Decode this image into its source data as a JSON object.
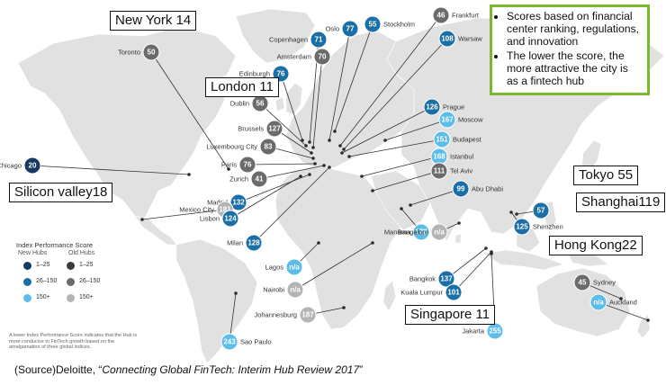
{
  "notes": [
    "Scores based on financial center ranking, regulations, and innovation",
    "The lower the score, the more attractive the city is as a fintech hub"
  ],
  "callouts": {
    "new_york": "New York 14",
    "london": "London 11",
    "silicon_valley": "Silicon valley18",
    "tokyo": "Tokyo 55",
    "shanghai": "Shanghai119",
    "hong_kong": "Hong Kong22",
    "singapore": "Singapore 11"
  },
  "colors": {
    "new_1_25": "#173a63",
    "new_26_150": "#1a6fa6",
    "new_150_plus": "#5bbde8",
    "old_1_25": "#3b3b3b",
    "old_26_150": "#6b6b6b",
    "old_150_plus": "#b4b4b4",
    "callout_border_notes": "#7cb82f"
  },
  "hubs": [
    {
      "city": "Toronto",
      "score": "50",
      "kind": "old"
    },
    {
      "city": "Copenhagen",
      "score": "71",
      "kind": "new"
    },
    {
      "city": "Oslo",
      "score": "77",
      "kind": "new"
    },
    {
      "city": "Stockholm",
      "score": "55",
      "kind": "new"
    },
    {
      "city": "Frankfurt",
      "score": "46",
      "kind": "old"
    },
    {
      "city": "Warsaw",
      "score": "108",
      "kind": "new"
    },
    {
      "city": "Amsterdam",
      "score": "70",
      "kind": "old"
    },
    {
      "city": "Edinburgh",
      "score": "76",
      "kind": "new"
    },
    {
      "city": "Dublin",
      "score": "56",
      "kind": "old"
    },
    {
      "city": "Prague",
      "score": "126",
      "kind": "new"
    },
    {
      "city": "Moscow",
      "score": "167",
      "kind": "new"
    },
    {
      "city": "Brussels",
      "score": "127",
      "kind": "old"
    },
    {
      "city": "Budapest",
      "score": "151",
      "kind": "new"
    },
    {
      "city": "Luxembourg City",
      "score": "83",
      "kind": "old"
    },
    {
      "city": "Istanbul",
      "score": "168",
      "kind": "new"
    },
    {
      "city": "Paris",
      "score": "76",
      "kind": "old"
    },
    {
      "city": "Chicago",
      "score": "20",
      "kind": "new"
    },
    {
      "city": "Zurich",
      "score": "41",
      "kind": "old"
    },
    {
      "city": "Tel Aviv",
      "score": "111",
      "kind": "old"
    },
    {
      "city": "Abu Dhabi",
      "score": "99",
      "kind": "new"
    },
    {
      "city": "Madrid",
      "score": "132",
      "kind": "new"
    },
    {
      "city": "Mexico City",
      "score": "181",
      "kind": "old"
    },
    {
      "city": "Lisbon",
      "score": "124",
      "kind": "new"
    },
    {
      "city": "Manama",
      "score": "178",
      "kind": "new"
    },
    {
      "city": "Milan",
      "score": "128",
      "kind": "new"
    },
    {
      "city": "Bangalore",
      "score": "n/a",
      "kind": "old"
    },
    {
      "city": "Lagos",
      "score": "n/a",
      "kind": "new"
    },
    {
      "city": "Bangkok",
      "score": "137",
      "kind": "new"
    },
    {
      "city": "Nairobi",
      "score": "n/a",
      "kind": "old"
    },
    {
      "city": "Kuala Lumpur",
      "score": "101",
      "kind": "new"
    },
    {
      "city": "Johannesburg",
      "score": "187",
      "kind": "old"
    },
    {
      "city": "Sao Paulo",
      "score": "243",
      "kind": "new"
    },
    {
      "city": "Jakarta",
      "score": "255",
      "kind": "new"
    },
    {
      "city": "Sydney",
      "score": "45",
      "kind": "old"
    },
    {
      "city": "Auckland",
      "score": "n/a",
      "kind": "new"
    },
    {
      "city": "Shenzhen",
      "score": "125",
      "kind": "new"
    },
    {
      "city": "",
      "score": "57",
      "kind": "new"
    }
  ],
  "legend": {
    "title": "Index Performance Score",
    "new_hubs": "New Hubs",
    "old_hubs": "Old Hubs",
    "range_1": "1–25",
    "range_2": "26–150",
    "range_3": "150+",
    "note": "A lower Index Performance Score indicates that the Hub is more conducive to FinTech growth based on the amalgamation of three global indices."
  },
  "source": {
    "prefix": "(Source)Deloitte, “",
    "title": "Connecting Global FinTech: Interim Hub Review 2017",
    "suffix": "”"
  }
}
